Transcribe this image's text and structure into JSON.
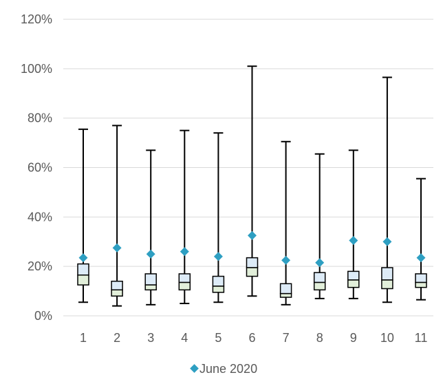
{
  "chart_data": {
    "type": "box",
    "categories": [
      "1",
      "2",
      "3",
      "4",
      "5",
      "6",
      "7",
      "8",
      "9",
      "10",
      "11"
    ],
    "boxes": [
      {
        "min": 5.5,
        "q1": 12.5,
        "median": 16.5,
        "q3": 21.0,
        "max": 75.5
      },
      {
        "min": 4.0,
        "q1": 8.0,
        "median": 10.5,
        "q3": 14.0,
        "max": 77.0
      },
      {
        "min": 4.5,
        "q1": 10.5,
        "median": 12.5,
        "q3": 17.0,
        "max": 67.0
      },
      {
        "min": 5.0,
        "q1": 10.5,
        "median": 13.5,
        "q3": 17.0,
        "max": 75.0
      },
      {
        "min": 5.5,
        "q1": 9.5,
        "median": 12.0,
        "q3": 16.0,
        "max": 74.0
      },
      {
        "min": 8.0,
        "q1": 16.0,
        "median": 19.5,
        "q3": 23.5,
        "max": 101.0
      },
      {
        "min": 4.5,
        "q1": 7.5,
        "median": 9.0,
        "q3": 13.0,
        "max": 70.5
      },
      {
        "min": 7.0,
        "q1": 10.5,
        "median": 13.5,
        "q3": 17.5,
        "max": 65.5
      },
      {
        "min": 7.0,
        "q1": 11.5,
        "median": 14.5,
        "q3": 18.0,
        "max": 67.0
      },
      {
        "min": 5.5,
        "q1": 11.0,
        "median": 14.5,
        "q3": 19.5,
        "max": 96.5
      },
      {
        "min": 6.5,
        "q1": 11.5,
        "median": 13.5,
        "q3": 17.0,
        "max": 55.5
      }
    ],
    "series": [
      {
        "name": "June 2020",
        "values": [
          23.5,
          27.5,
          25.0,
          26.0,
          24.0,
          32.5,
          22.5,
          21.5,
          30.5,
          30.0,
          23.5
        ],
        "color": "#2E9FC2"
      }
    ],
    "y_ticks": [
      "0%",
      "20%",
      "40%",
      "60%",
      "80%",
      "100%",
      "120%"
    ],
    "ylim": [
      0,
      120
    ],
    "grid": true,
    "legend_position": "bottom",
    "colors": {
      "upper_box": "#DDEBF7",
      "lower_box": "#E2EFDA",
      "whisker": "#000000",
      "grid": "#D9D9D9",
      "text": "#595959"
    }
  }
}
